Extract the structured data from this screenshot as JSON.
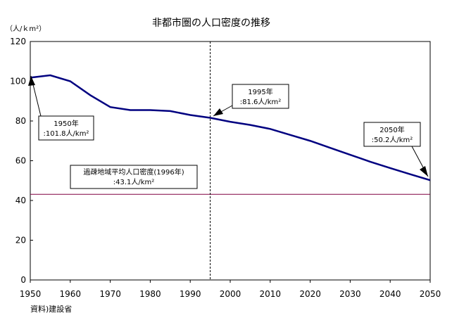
{
  "chart_data": {
    "type": "line",
    "title": "非都市圏の人口密度の推移",
    "ylabel": "（人/ｋm²）",
    "xlim": [
      1950,
      2050
    ],
    "ylim": [
      0,
      120
    ],
    "x_ticks": [
      1950,
      1960,
      1970,
      1980,
      1990,
      2000,
      2010,
      2020,
      2030,
      2040,
      2050
    ],
    "y_ticks": [
      0,
      20,
      40,
      60,
      80,
      100,
      120
    ],
    "grid": false,
    "series": [
      {
        "color": "#000080",
        "x": [
          1950,
          1955,
          1960,
          1965,
          1970,
          1975,
          1980,
          1985,
          1990,
          1995,
          2000,
          2005,
          2010,
          2015,
          2020,
          2025,
          2030,
          2035,
          2040,
          2045,
          2050
        ],
        "values": [
          101.8,
          103.0,
          100.0,
          93.0,
          87.0,
          85.5,
          85.5,
          85.0,
          83.0,
          81.6,
          79.6,
          78.0,
          76.0,
          73.0,
          70.0,
          66.5,
          63.0,
          59.5,
          56.3,
          53.2,
          50.2
        ]
      }
    ],
    "reference_line": {
      "value": 43.1,
      "color": "#800040",
      "label_line1": "過疎地域平均人口密度(1996年)",
      "label_line2": ":43.1人/km²"
    },
    "vertical_marker": {
      "x": 1995
    },
    "annotations": [
      {
        "id": "1950",
        "x": 1950,
        "y": 101.8,
        "line1": "1950年",
        "line2": ":101.8人/km²"
      },
      {
        "id": "1995",
        "x": 1995,
        "y": 81.6,
        "line1": "1995年",
        "line2": ":81.6人/km²"
      },
      {
        "id": "2050",
        "x": 2050,
        "y": 50.2,
        "line1": "2050年",
        "line2": ":50.2人/km²"
      }
    ],
    "source": "資料)建設省"
  }
}
